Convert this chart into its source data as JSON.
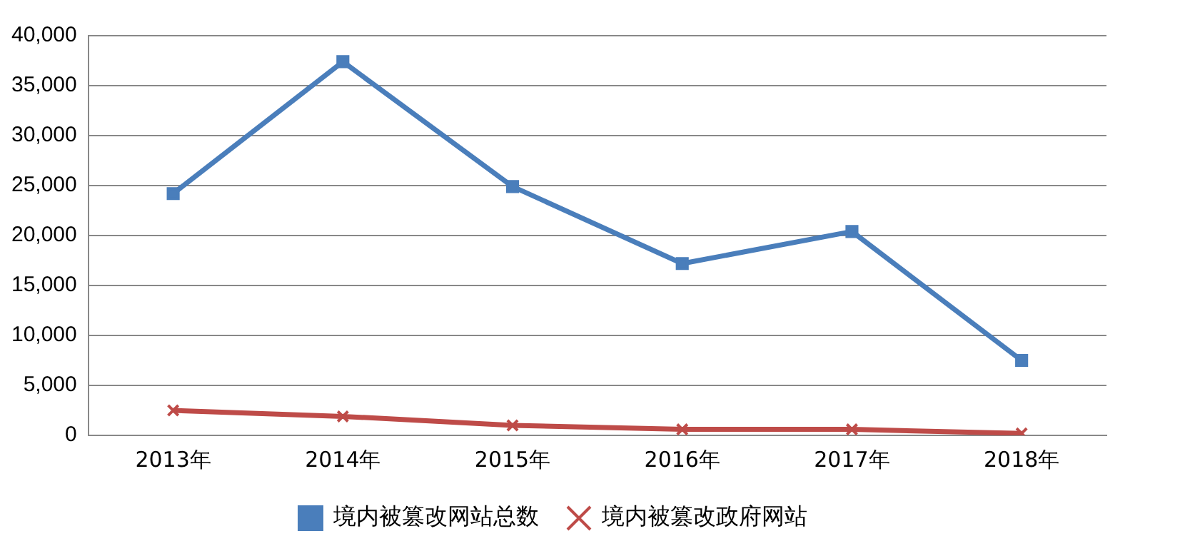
{
  "chart_data": {
    "type": "line",
    "categories": [
      "2013年",
      "2014年",
      "2015年",
      "2016年",
      "2017年",
      "2018年"
    ],
    "series": [
      {
        "name": "境内被篡改网站总数",
        "color": "#4a7ebb",
        "marker": "square",
        "values": [
          24200,
          37400,
          24900,
          17200,
          20400,
          7500
        ]
      },
      {
        "name": "境内被篡改政府网站",
        "color": "#be4b48",
        "marker": "cross",
        "values": [
          2500,
          1900,
          1000,
          600,
          600,
          200
        ]
      }
    ],
    "ylim": [
      0,
      40000
    ],
    "yticks": [
      {
        "value": 0,
        "label": "0"
      },
      {
        "value": 5000,
        "label": "5,000"
      },
      {
        "value": 10000,
        "label": "10,000"
      },
      {
        "value": 15000,
        "label": "15,000"
      },
      {
        "value": 20000,
        "label": "20,000"
      },
      {
        "value": 25000,
        "label": "25,000"
      },
      {
        "value": 30000,
        "label": "30,000"
      },
      {
        "value": 35000,
        "label": "35,000"
      },
      {
        "value": 40000,
        "label": "40,000"
      }
    ],
    "grid": "y",
    "legend": "bottom",
    "line_style": "solid"
  }
}
